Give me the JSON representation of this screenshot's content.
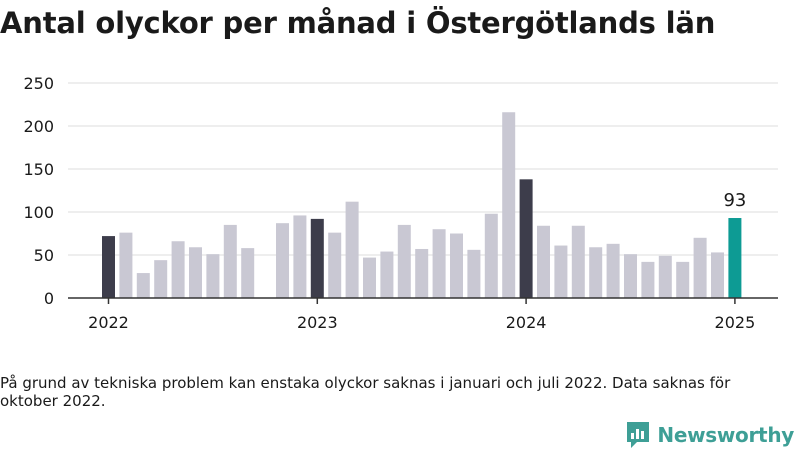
{
  "chart_data": {
    "type": "bar",
    "title": "Antal olyckor per månad i Östergötlands län",
    "xlabel": "",
    "ylabel": "",
    "ylim": [
      0,
      250
    ],
    "yticks": [
      0,
      50,
      100,
      150,
      200,
      250
    ],
    "grid": true,
    "x_tick_labels": [
      {
        "label": "2022",
        "index": 0
      },
      {
        "label": "2023",
        "index": 12
      },
      {
        "label": "2024",
        "index": 24
      },
      {
        "label": "2025",
        "index": 36
      }
    ],
    "months": [
      "2022-01",
      "2022-02",
      "2022-03",
      "2022-04",
      "2022-05",
      "2022-06",
      "2022-07",
      "2022-08",
      "2022-09",
      "2022-10",
      "2022-11",
      "2022-12",
      "2023-01",
      "2023-02",
      "2023-03",
      "2023-04",
      "2023-05",
      "2023-06",
      "2023-07",
      "2023-08",
      "2023-09",
      "2023-10",
      "2023-11",
      "2023-12",
      "2024-01",
      "2024-02",
      "2024-03",
      "2024-04",
      "2024-05",
      "2024-06",
      "2024-07",
      "2024-08",
      "2024-09",
      "2024-10",
      "2024-11",
      "2024-12",
      "2025-01"
    ],
    "values": [
      72,
      76,
      29,
      44,
      66,
      59,
      51,
      85,
      58,
      null,
      87,
      96,
      92,
      76,
      112,
      47,
      54,
      85,
      57,
      80,
      75,
      56,
      98,
      216,
      138,
      84,
      61,
      84,
      59,
      63,
      51,
      42,
      49,
      42,
      70,
      53,
      93
    ],
    "highlight_label": {
      "index": 36,
      "text": "93"
    },
    "colors": {
      "january": "#3d3d4b",
      "other": "#c9c8d3",
      "latest": "#0d9b94",
      "grid": "#dddddd",
      "axis": "#333333"
    }
  },
  "note": "På grund av tekniska problem kan enstaka olyckor saknas i januari och juli 2022. Data saknas för oktober 2022.",
  "brand": {
    "name": "Newsworthy",
    "icon": "newsworthy-logo-icon",
    "color": "#3e9f96"
  }
}
